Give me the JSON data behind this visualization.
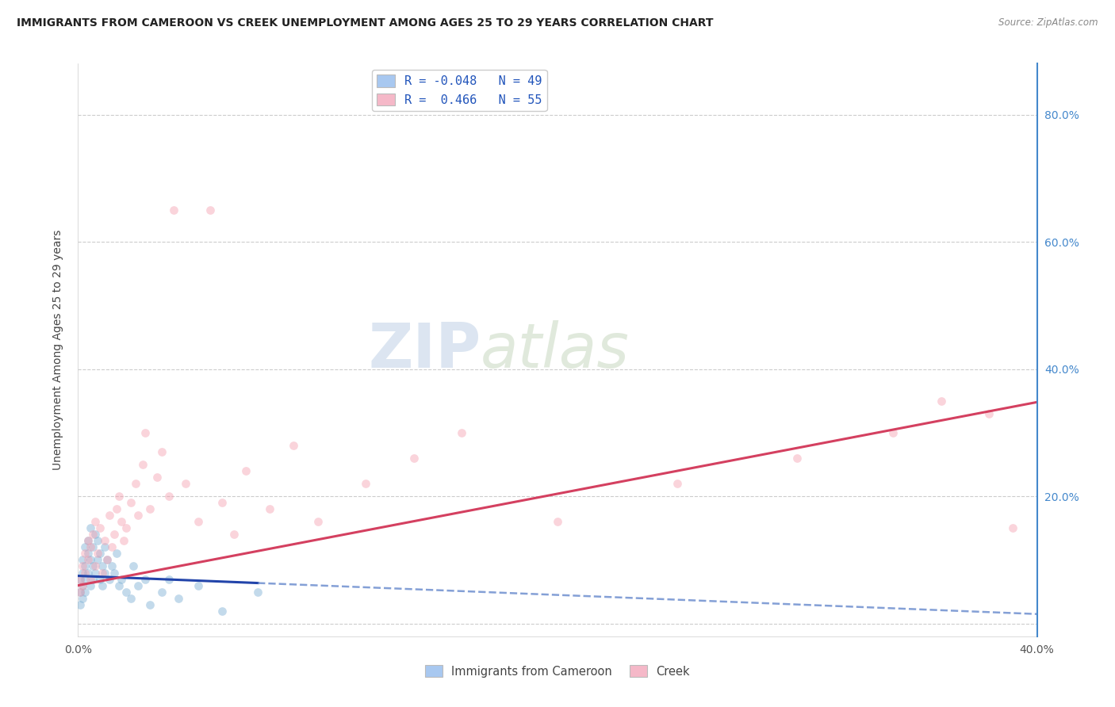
{
  "title": "IMMIGRANTS FROM CAMEROON VS CREEK UNEMPLOYMENT AMONG AGES 25 TO 29 YEARS CORRELATION CHART",
  "source": "Source: ZipAtlas.com",
  "ylabel": "Unemployment Among Ages 25 to 29 years",
  "xlim": [
    0.0,
    0.4
  ],
  "ylim": [
    -0.02,
    0.88
  ],
  "xticks": [
    0.0,
    0.1,
    0.2,
    0.3,
    0.4
  ],
  "xticklabels": [
    "0.0%",
    "",
    "",
    "",
    "40.0%"
  ],
  "yticks_left": [],
  "yticks_right": [
    0.0,
    0.2,
    0.4,
    0.6,
    0.8
  ],
  "right_yticklabels": [
    "",
    "20.0%",
    "40.0%",
    "60.0%",
    "80.0%"
  ],
  "grid_color": "#cccccc",
  "background_color": "#ffffff",
  "watermark_zip": "ZIP",
  "watermark_atlas": "atlas",
  "legend_label1": "R = -0.048   N = 49",
  "legend_label2": "R =  0.466   N = 55",
  "legend_color1": "#a8c8f0",
  "legend_color2": "#f5b8c8",
  "series1_color": "#7bafd4",
  "series2_color": "#f4a0b0",
  "line1_solid_color": "#2244aa",
  "line2_color": "#d44060",
  "line1_dashed_color": "#6688cc",
  "dot_size": 60,
  "dot_alpha": 0.45,
  "series1_x": [
    0.001,
    0.001,
    0.001,
    0.002,
    0.002,
    0.002,
    0.002,
    0.003,
    0.003,
    0.003,
    0.003,
    0.004,
    0.004,
    0.004,
    0.005,
    0.005,
    0.005,
    0.006,
    0.006,
    0.006,
    0.007,
    0.007,
    0.008,
    0.008,
    0.009,
    0.009,
    0.01,
    0.01,
    0.011,
    0.011,
    0.012,
    0.013,
    0.014,
    0.015,
    0.016,
    0.017,
    0.018,
    0.02,
    0.022,
    0.023,
    0.025,
    0.028,
    0.03,
    0.035,
    0.038,
    0.042,
    0.05,
    0.06,
    0.075
  ],
  "series1_y": [
    0.05,
    0.03,
    0.07,
    0.06,
    0.08,
    0.04,
    0.1,
    0.09,
    0.07,
    0.12,
    0.05,
    0.11,
    0.08,
    0.13,
    0.1,
    0.06,
    0.15,
    0.09,
    0.07,
    0.12,
    0.14,
    0.08,
    0.1,
    0.13,
    0.11,
    0.07,
    0.09,
    0.06,
    0.08,
    0.12,
    0.1,
    0.07,
    0.09,
    0.08,
    0.11,
    0.06,
    0.07,
    0.05,
    0.04,
    0.09,
    0.06,
    0.07,
    0.03,
    0.05,
    0.07,
    0.04,
    0.06,
    0.02,
    0.05
  ],
  "series2_x": [
    0.001,
    0.001,
    0.002,
    0.002,
    0.003,
    0.003,
    0.004,
    0.004,
    0.005,
    0.005,
    0.006,
    0.007,
    0.007,
    0.008,
    0.009,
    0.01,
    0.011,
    0.012,
    0.013,
    0.014,
    0.015,
    0.016,
    0.017,
    0.018,
    0.019,
    0.02,
    0.022,
    0.024,
    0.025,
    0.027,
    0.028,
    0.03,
    0.033,
    0.035,
    0.038,
    0.04,
    0.045,
    0.05,
    0.055,
    0.06,
    0.065,
    0.07,
    0.08,
    0.09,
    0.1,
    0.12,
    0.14,
    0.16,
    0.2,
    0.25,
    0.3,
    0.34,
    0.36,
    0.38,
    0.39
  ],
  "series2_y": [
    0.07,
    0.05,
    0.09,
    0.06,
    0.11,
    0.08,
    0.1,
    0.13,
    0.12,
    0.07,
    0.14,
    0.09,
    0.16,
    0.11,
    0.15,
    0.08,
    0.13,
    0.1,
    0.17,
    0.12,
    0.14,
    0.18,
    0.2,
    0.16,
    0.13,
    0.15,
    0.19,
    0.22,
    0.17,
    0.25,
    0.3,
    0.18,
    0.23,
    0.27,
    0.2,
    0.65,
    0.22,
    0.16,
    0.65,
    0.19,
    0.14,
    0.24,
    0.18,
    0.28,
    0.16,
    0.22,
    0.26,
    0.3,
    0.16,
    0.22,
    0.26,
    0.3,
    0.35,
    0.33,
    0.15
  ],
  "line1_x_solid_end": 0.075,
  "line2_x_start": 0.0,
  "line2_x_end": 0.4,
  "R1": -0.048,
  "R2": 0.466,
  "line1_intercept": 0.075,
  "line1_slope": -0.15,
  "line2_intercept": 0.06,
  "line2_slope": 0.72
}
